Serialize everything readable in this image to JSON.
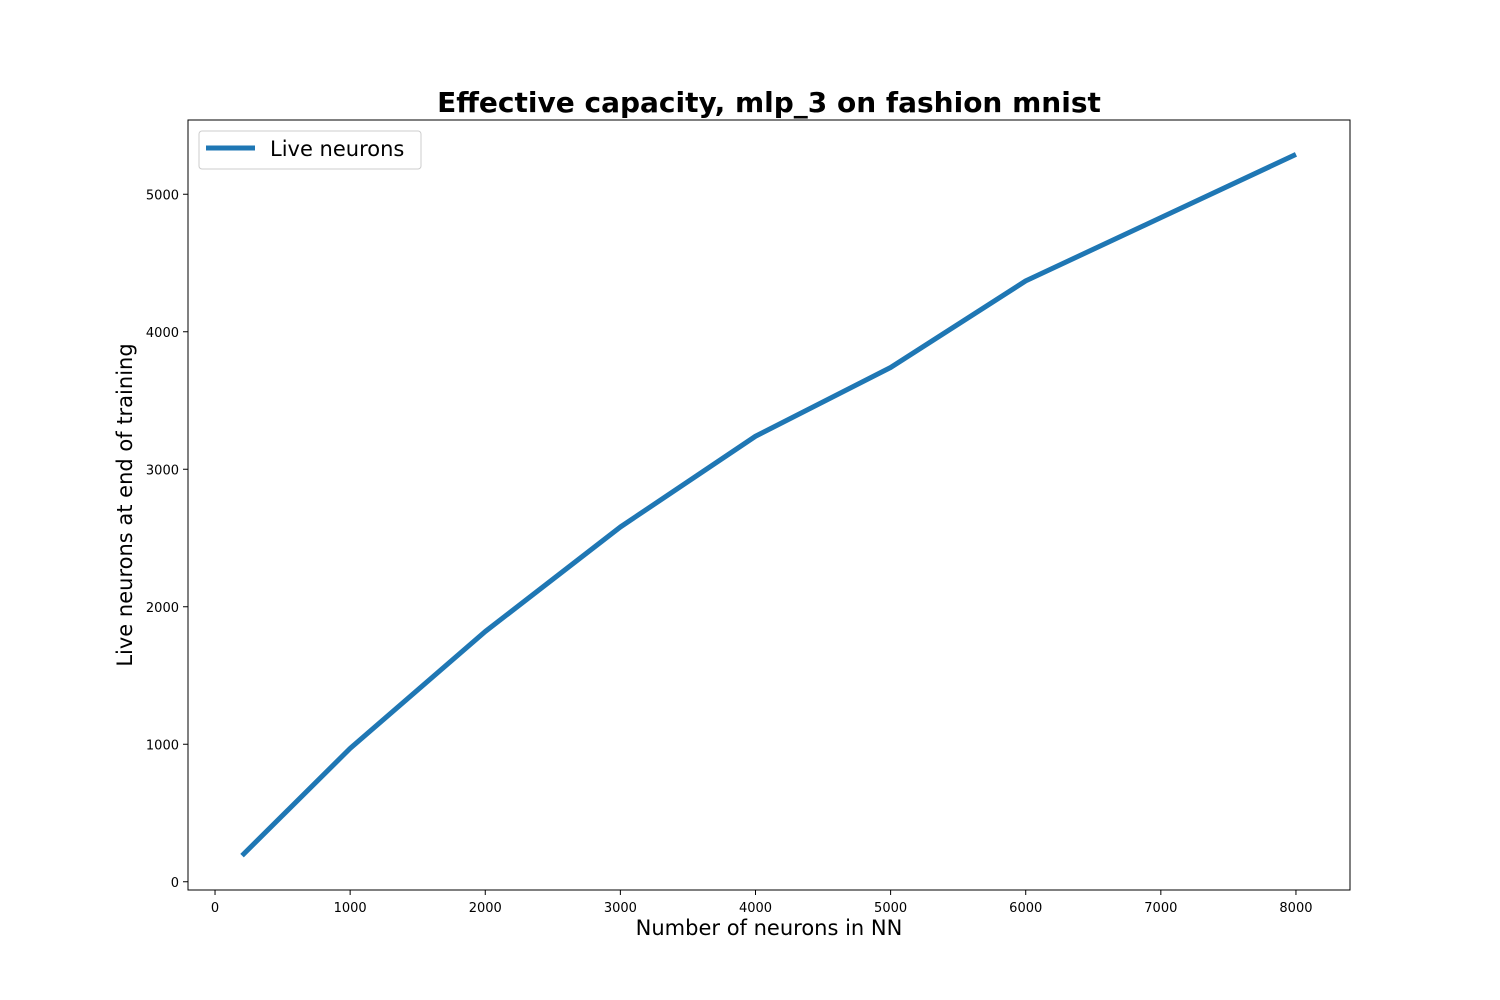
{
  "chart_data": {
    "type": "line",
    "title": "Effective capacity, mlp_3 on fashion mnist",
    "xlabel": "Number of neurons in NN",
    "ylabel": "Live neurons at end of training",
    "xlim": [
      -200,
      8400
    ],
    "ylim": [
      -60,
      5540
    ],
    "xticks": [
      0,
      1000,
      2000,
      3000,
      4000,
      5000,
      6000,
      7000,
      8000
    ],
    "yticks": [
      0,
      1000,
      2000,
      3000,
      4000,
      5000
    ],
    "grid": false,
    "legend_position": "upper-left",
    "series": [
      {
        "name": "Live neurons",
        "color": "#1f77b4",
        "x": [
          200,
          1000,
          2000,
          3000,
          4000,
          5000,
          6000,
          7000,
          8000
        ],
        "y": [
          190,
          970,
          1820,
          2580,
          3240,
          3740,
          4370,
          4830,
          5290
        ]
      }
    ]
  }
}
